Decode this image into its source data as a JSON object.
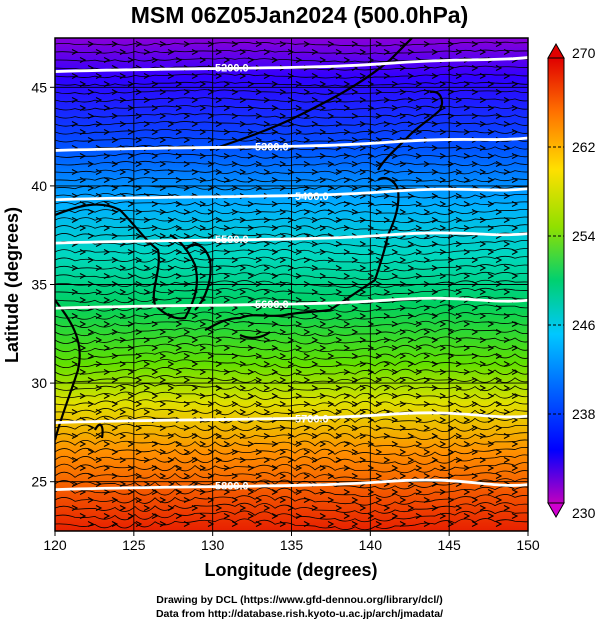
{
  "title": "MSM 06Z05Jan2024 (500.0hPa)",
  "axes": {
    "xlabel": "Longitude (degrees)",
    "ylabel": "Latitude  (degrees)",
    "xticks": [
      "120",
      "125",
      "130",
      "135",
      "140",
      "145",
      "150"
    ],
    "yticks": [
      "25",
      "30",
      "35",
      "40",
      "45"
    ],
    "xlim": [
      120,
      150
    ],
    "ylim": [
      22.5,
      47.5
    ]
  },
  "colorbar": {
    "min": 230,
    "max": 270,
    "labels": [
      "270",
      "262",
      "254",
      "246",
      "238",
      "230"
    ],
    "colors": [
      "#c000c0",
      "#0000ff",
      "#00c8ff",
      "#00d070",
      "#90e000",
      "#ffe000",
      "#ff7000",
      "#e00000"
    ]
  },
  "contours": [
    {
      "label": "5200.0",
      "lat": 46.0
    },
    {
      "label": "5300.0",
      "lat": 42.0
    },
    {
      "label": "5400.0",
      "lat": 39.5
    },
    {
      "label": "5500.0",
      "lat": 37.3
    },
    {
      "label": "5600.0",
      "lat": 34.0
    },
    {
      "label": "5700.0",
      "lat": 28.2
    },
    {
      "label": "5800.0",
      "lat": 24.8
    }
  ],
  "credits": {
    "line1": "Drawing by DCL (https://www.gfd-dennou.org/library/dcl/)",
    "line2": "Data from http://database.rish.kyoto-u.ac.jp/arch/jmadata/"
  }
}
